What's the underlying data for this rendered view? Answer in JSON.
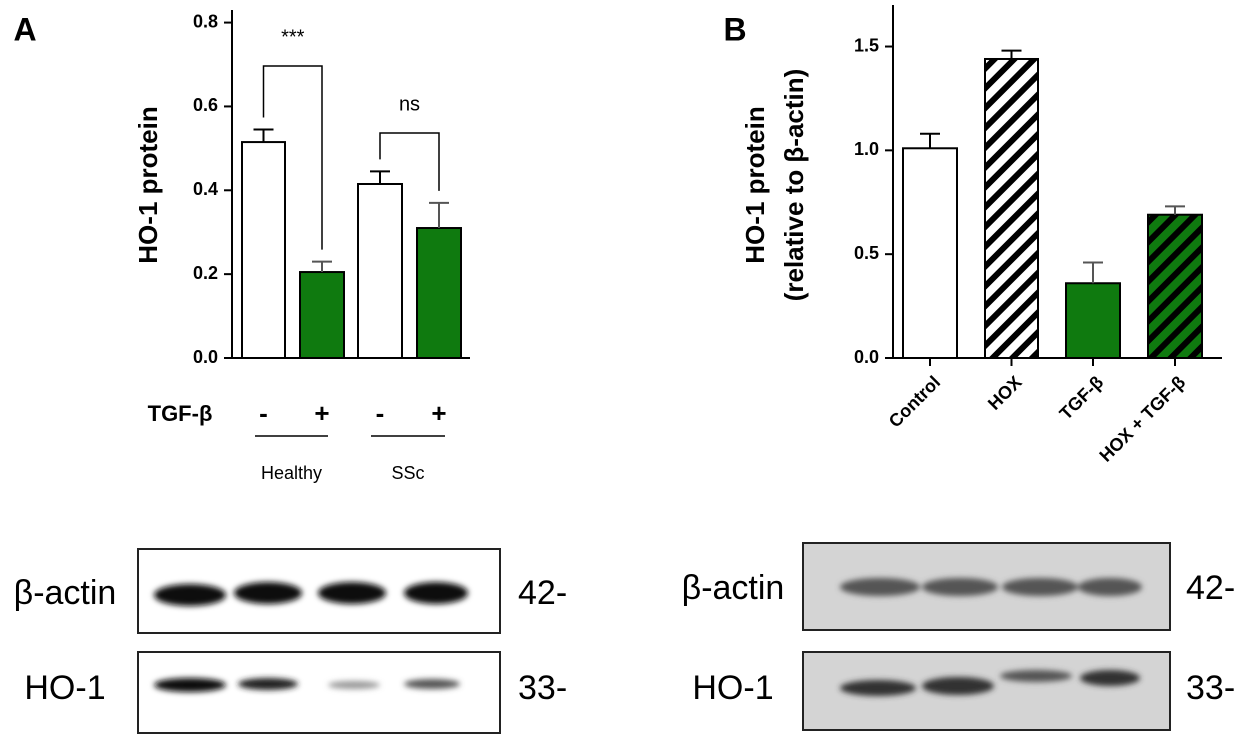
{
  "chart_data": [
    {
      "type": "bar",
      "panel_label": "A",
      "ylabel": [
        "HO-1 protein"
      ],
      "categories": [
        "-",
        "+",
        "-",
        "+"
      ],
      "row_label": "TGF-β",
      "group_labels": [
        "Healthy",
        "SSc"
      ],
      "values": [
        0.515,
        0.205,
        0.415,
        0.31
      ],
      "errors": [
        0.03,
        0.025,
        0.03,
        0.06
      ],
      "colors": [
        "#ffffff",
        "#0f7a0f",
        "#ffffff",
        "#0f7a0f"
      ],
      "hatch": [
        false,
        false,
        false,
        false
      ],
      "annotations": [
        "***",
        "ns"
      ],
      "ylim": [
        0,
        0.83
      ],
      "yticks": [
        {
          "value": 0,
          "label": "0.0"
        },
        0.2,
        0.4,
        0.6,
        0.8
      ],
      "blot": {
        "rows": [
          "β-actin",
          "HO-1"
        ],
        "markers": [
          "42-",
          "33-"
        ]
      }
    },
    {
      "type": "bar",
      "panel_label": "B",
      "ylabel": [
        "HO-1 protein",
        "(relative to β-actin)"
      ],
      "categories": [
        "Control",
        "HOX",
        "TGF-β",
        "HOX + TGF-β"
      ],
      "values": [
        1.01,
        1.44,
        0.36,
        0.69
      ],
      "errors": [
        0.07,
        0.04,
        0.1,
        0.04
      ],
      "colors": [
        "#ffffff",
        "#ffffff",
        "#0f7a0f",
        "#0f7a0f"
      ],
      "hatch": [
        false,
        true,
        false,
        true
      ],
      "ylim": [
        0,
        1.7
      ],
      "yticks": [
        {
          "value": 0,
          "label": "0.0"
        },
        0.5,
        {
          "value": 1,
          "label": "1.0"
        },
        1.5
      ],
      "blot": {
        "rows": [
          "β-actin",
          "HO-1"
        ],
        "markers": [
          "42-",
          "33-"
        ]
      }
    }
  ]
}
